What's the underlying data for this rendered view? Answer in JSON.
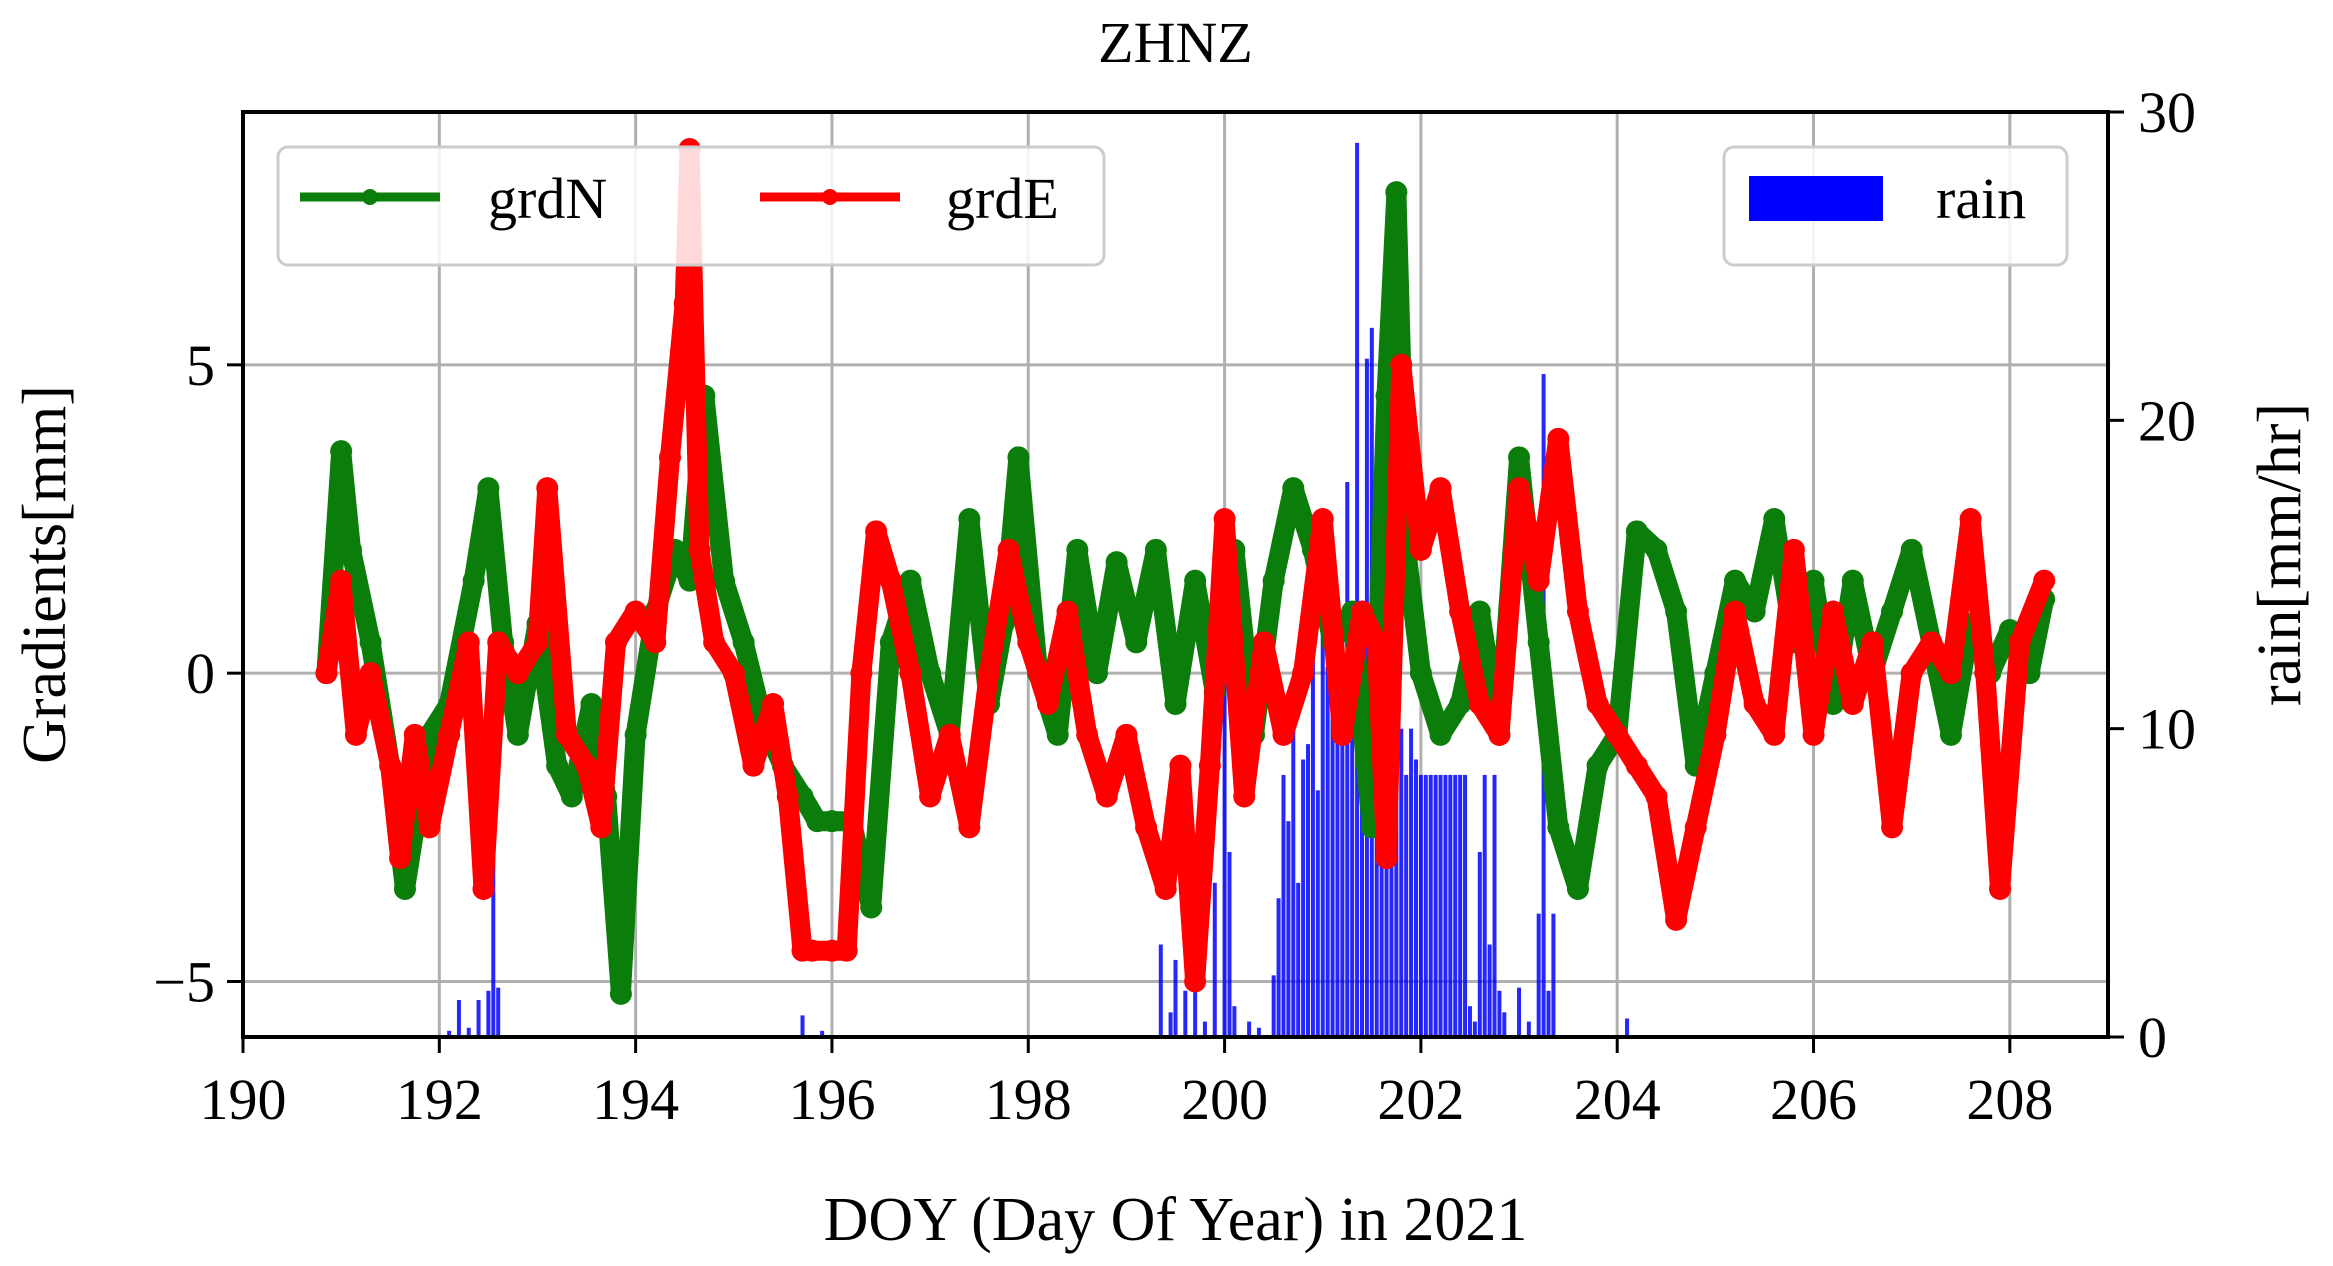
{
  "chart_data": {
    "type": "line",
    "title": "ZHNZ",
    "xlabel": "DOY (Day Of Year) in 2021",
    "ylabel": "Gradients[mm]",
    "ylabel_right": "rain[mm/hr]",
    "xlim": [
      190,
      209
    ],
    "ylim": [
      -5.9,
      9.1
    ],
    "ylim_right": [
      0,
      30
    ],
    "x_ticks": [
      190,
      192,
      194,
      196,
      198,
      200,
      202,
      204,
      206,
      208
    ],
    "y_ticks": [
      -5,
      0,
      5
    ],
    "y_tick_labels": [
      "−5",
      "0",
      "5"
    ],
    "y_right_ticks": [
      0,
      10,
      20,
      30
    ],
    "grid": true,
    "legend_left": [
      "grdN",
      "grdE"
    ],
    "legend_right": [
      "rain"
    ],
    "colors": {
      "grdN": "#0a7d0a",
      "grdE": "#ff0000",
      "rain": "#0000ff"
    },
    "series": [
      {
        "name": "grdN",
        "x": [
          190.85,
          191.0,
          191.1,
          191.3,
          191.5,
          191.65,
          191.9,
          192.1,
          192.35,
          192.5,
          192.65,
          192.8,
          193.0,
          193.2,
          193.35,
          193.55,
          193.7,
          193.85,
          194.0,
          194.2,
          194.4,
          194.55,
          194.7,
          194.9,
          195.1,
          195.3,
          195.5,
          195.7,
          195.85,
          196.0,
          196.2,
          196.4,
          196.6,
          196.8,
          197.0,
          197.2,
          197.4,
          197.6,
          197.75,
          197.9,
          198.1,
          198.3,
          198.5,
          198.7,
          198.9,
          199.1,
          199.3,
          199.5,
          199.7,
          199.9,
          200.1,
          200.3,
          200.5,
          200.7,
          200.9,
          201.1,
          201.3,
          201.5,
          201.65,
          201.75,
          201.85,
          202.0,
          202.2,
          202.4,
          202.6,
          202.8,
          203.0,
          203.2,
          203.4,
          203.6,
          203.8,
          204.0,
          204.2,
          204.4,
          204.6,
          204.8,
          205.0,
          205.2,
          205.4,
          205.6,
          205.8,
          206.0,
          206.2,
          206.4,
          206.6,
          206.8,
          207.0,
          207.2,
          207.4,
          207.6,
          207.8,
          208.0,
          208.2,
          208.35
        ],
        "values": [
          0.0,
          3.6,
          2.0,
          0.5,
          -1.5,
          -3.5,
          -1.0,
          -0.5,
          1.5,
          3.0,
          0.5,
          -1.0,
          0.8,
          -1.5,
          -2.0,
          -0.5,
          -2.0,
          -5.2,
          -1.0,
          1.0,
          2.0,
          1.5,
          4.5,
          1.5,
          0.5,
          -0.8,
          -1.5,
          -2.0,
          -2.4,
          -2.4,
          -2.4,
          -3.8,
          0.5,
          1.5,
          0.0,
          -1.0,
          2.5,
          -0.5,
          0.8,
          3.5,
          0.0,
          -1.0,
          2.0,
          0.0,
          1.8,
          0.5,
          2.0,
          -0.5,
          1.5,
          -0.3,
          2.0,
          -1.0,
          1.5,
          3.0,
          2.0,
          0.5,
          1.0,
          -2.5,
          4.5,
          7.8,
          2.0,
          0.0,
          -1.0,
          -0.5,
          1.0,
          -1.0,
          3.5,
          0.5,
          -2.5,
          -3.5,
          -1.5,
          -1.0,
          2.3,
          2.0,
          1.0,
          -1.5,
          0.0,
          1.5,
          1.0,
          2.5,
          0.5,
          1.5,
          -0.5,
          1.5,
          0.0,
          1.0,
          2.0,
          0.5,
          -1.0,
          0.8,
          0.0,
          0.7,
          0.0,
          1.2
        ]
      },
      {
        "name": "grdE",
        "x": [
          190.85,
          191.0,
          191.15,
          191.3,
          191.5,
          191.6,
          191.75,
          191.9,
          192.1,
          192.3,
          192.45,
          192.6,
          192.8,
          193.0,
          193.1,
          193.3,
          193.5,
          193.65,
          193.8,
          194.0,
          194.2,
          194.35,
          194.5,
          194.55,
          194.65,
          194.8,
          195.0,
          195.2,
          195.4,
          195.55,
          195.7,
          195.8,
          196.0,
          196.15,
          196.3,
          196.45,
          196.6,
          196.8,
          197.0,
          197.2,
          197.4,
          197.6,
          197.8,
          198.0,
          198.2,
          198.4,
          198.6,
          198.8,
          199.0,
          199.2,
          199.4,
          199.55,
          199.7,
          199.85,
          200.0,
          200.2,
          200.4,
          200.6,
          200.8,
          201.0,
          201.2,
          201.4,
          201.55,
          201.65,
          201.8,
          202.0,
          202.2,
          202.4,
          202.6,
          202.8,
          203.0,
          203.2,
          203.4,
          203.6,
          203.8,
          204.0,
          204.2,
          204.4,
          204.6,
          204.8,
          205.0,
          205.2,
          205.4,
          205.6,
          205.8,
          206.0,
          206.2,
          206.4,
          206.6,
          206.8,
          207.0,
          207.2,
          207.4,
          207.6,
          207.75,
          207.9,
          208.1,
          208.35
        ],
        "values": [
          0.0,
          1.5,
          -1.0,
          0.0,
          -1.5,
          -3.0,
          -1.0,
          -2.5,
          -1.0,
          0.5,
          -3.5,
          0.5,
          0.0,
          0.5,
          3.0,
          -1.0,
          -1.5,
          -2.5,
          0.5,
          1.0,
          0.5,
          3.5,
          6.0,
          8.5,
          2.0,
          0.5,
          0.0,
          -1.5,
          -0.5,
          -2.0,
          -4.5,
          -4.5,
          -4.5,
          -4.5,
          0.0,
          2.3,
          1.5,
          0.0,
          -2.0,
          -1.0,
          -2.5,
          0.0,
          2.0,
          0.5,
          -0.5,
          1.0,
          -1.0,
          -2.0,
          -1.0,
          -2.5,
          -3.5,
          -1.5,
          -5.0,
          -1.5,
          2.5,
          -2.0,
          0.5,
          -1.0,
          0.0,
          2.5,
          -1.0,
          1.0,
          0.5,
          -3.0,
          5.0,
          2.0,
          3.0,
          1.0,
          -0.5,
          -1.0,
          3.0,
          1.5,
          3.8,
          1.0,
          -0.5,
          -1.0,
          -1.5,
          -2.0,
          -4.0,
          -2.5,
          -1.0,
          1.0,
          -0.5,
          -1.0,
          2.0,
          -1.0,
          1.0,
          -0.5,
          0.5,
          -2.5,
          0.0,
          0.5,
          0.0,
          2.5,
          0.0,
          -3.5,
          0.5,
          1.5
        ]
      },
      {
        "name": "rain",
        "type": "bar",
        "axis": "right",
        "x": [
          192.1,
          192.2,
          192.3,
          192.4,
          192.5,
          192.55,
          192.6,
          195.7,
          195.9,
          199.35,
          199.45,
          199.5,
          199.6,
          199.7,
          199.8,
          199.9,
          200.0,
          200.05,
          200.1,
          200.25,
          200.35,
          200.5,
          200.55,
          200.6,
          200.65,
          200.7,
          200.75,
          200.8,
          200.85,
          200.9,
          200.95,
          201.0,
          201.05,
          201.1,
          201.15,
          201.2,
          201.25,
          201.3,
          201.35,
          201.4,
          201.45,
          201.5,
          201.55,
          201.6,
          201.65,
          201.7,
          201.75,
          201.8,
          201.85,
          201.9,
          201.95,
          202.0,
          202.05,
          202.1,
          202.15,
          202.2,
          202.25,
          202.3,
          202.35,
          202.4,
          202.45,
          202.5,
          202.55,
          202.6,
          202.65,
          202.7,
          202.75,
          202.8,
          202.85,
          203.0,
          203.1,
          203.2,
          203.25,
          203.3,
          203.35,
          204.1
        ],
        "values": [
          0.2,
          1.2,
          0.3,
          1.2,
          1.5,
          9.5,
          1.6,
          0.7,
          0.2,
          3.0,
          0.8,
          2.5,
          1.5,
          4.0,
          0.5,
          5.0,
          13.0,
          6.0,
          1.0,
          0.5,
          0.3,
          2.0,
          4.5,
          8.5,
          7.0,
          10.0,
          5.0,
          9.0,
          9.5,
          15.0,
          8.0,
          16.0,
          12.0,
          11.0,
          14.0,
          13.0,
          18.0,
          10.5,
          29.0,
          11.0,
          22.0,
          23.0,
          19.0,
          15.0,
          11.0,
          9.0,
          12.5,
          10.0,
          8.5,
          10.0,
          9.0,
          8.5,
          8.5,
          8.5,
          8.5,
          8.5,
          8.5,
          8.5,
          8.5,
          8.5,
          8.5,
          1.0,
          0.5,
          6.0,
          8.5,
          3.0,
          8.5,
          1.5,
          0.8,
          1.6,
          0.5,
          4.0,
          21.5,
          1.5,
          4.0,
          0.6
        ]
      }
    ]
  }
}
